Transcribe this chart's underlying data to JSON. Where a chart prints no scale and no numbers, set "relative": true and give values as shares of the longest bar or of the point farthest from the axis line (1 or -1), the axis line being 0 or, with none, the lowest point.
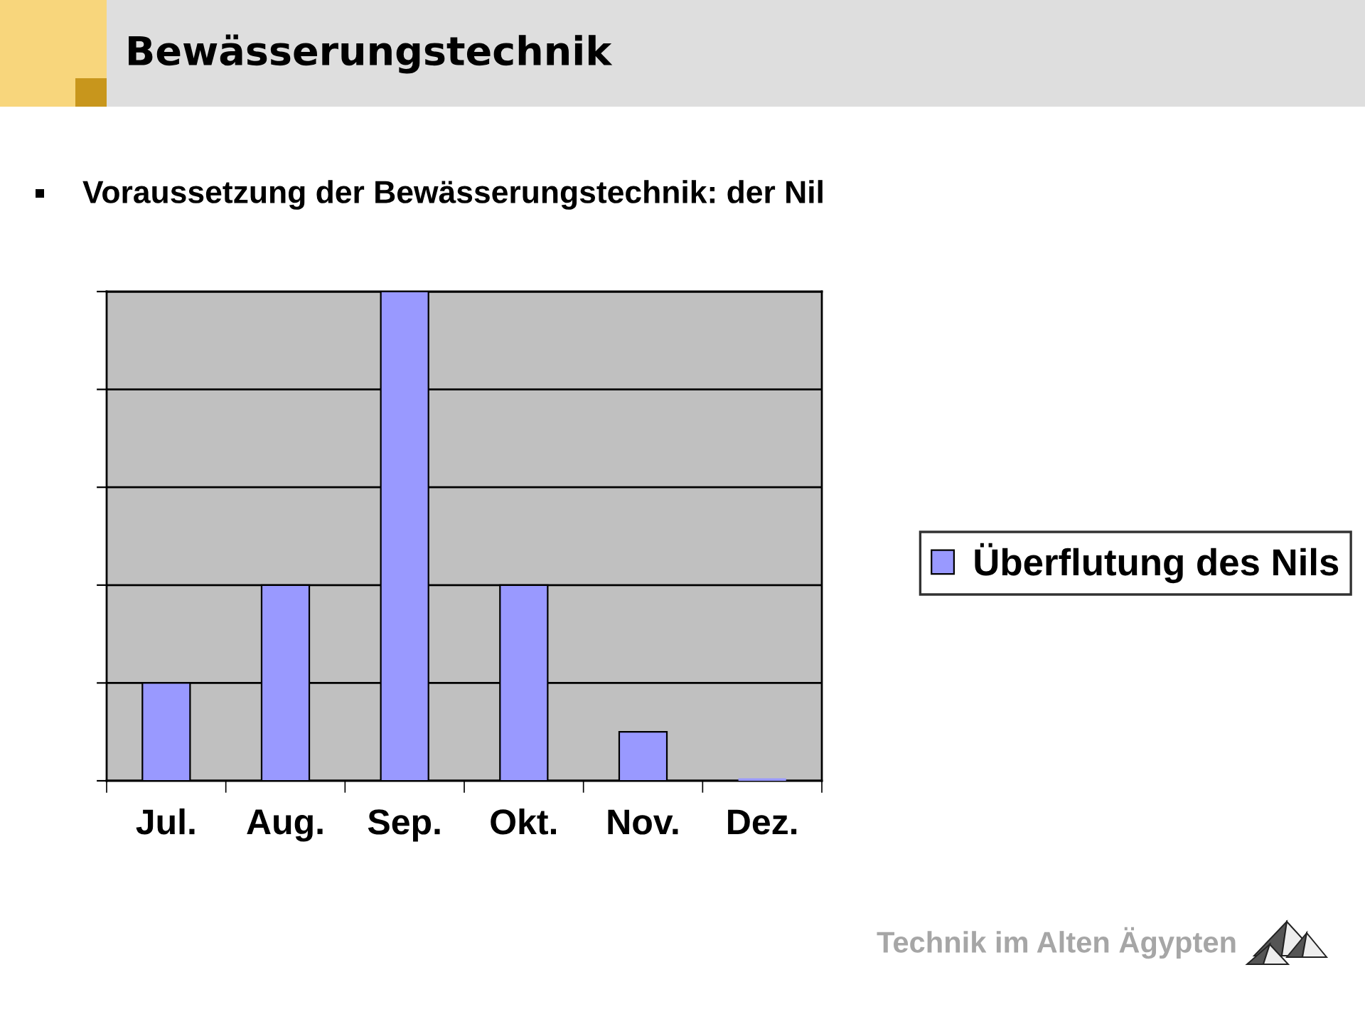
{
  "chart_data": {
    "type": "bar",
    "title": "Bewässerungstechnik",
    "subtitle": "Voraussetzung der Bewässerungstechnik: der Nil",
    "categories": [
      "Jul.",
      "Aug.",
      "Sep.",
      "Okt.",
      "Nov.",
      "Dez."
    ],
    "series": [
      {
        "name": "Überflutung des Nils",
        "color": "#9999ff",
        "values": [
          0.2,
          0.4,
          1,
          0.4,
          0.1,
          0
        ]
      }
    ],
    "relative": true,
    "grid": "y",
    "legend": "right",
    "annotations": [
      "Technik im Alten Ägypten"
    ]
  }
}
